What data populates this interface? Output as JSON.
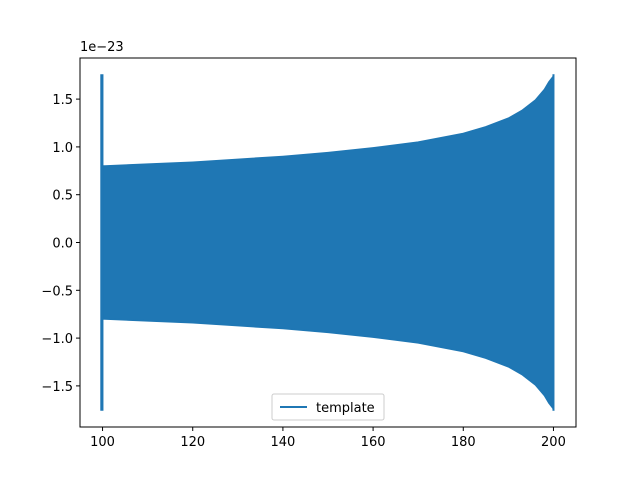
{
  "chart_data": {
    "type": "line",
    "title": "",
    "xlabel": "",
    "ylabel": "",
    "y_offset_text": "1e−23",
    "xlim": [
      95,
      205
    ],
    "ylim": [
      -1.93,
      1.93
    ],
    "x_ticks": [
      100,
      120,
      140,
      160,
      180,
      200
    ],
    "x_tick_labels": [
      "100",
      "120",
      "140",
      "160",
      "180",
      "200"
    ],
    "y_ticks": [
      -1.5,
      -1.0,
      -0.5,
      0.0,
      0.5,
      1.0,
      1.5
    ],
    "y_tick_labels": [
      "−1.5",
      "−1.0",
      "−0.5",
      "0.0",
      "0.5",
      "1.0",
      "1.5"
    ],
    "grid": false,
    "legend_position": "bottom-center",
    "color": "#1f77b4",
    "series": [
      {
        "name": "template",
        "color": "#1f77b4",
        "envelope_x": [
          100,
          100.5,
          110,
          120,
          130,
          140,
          150,
          160,
          170,
          180,
          185,
          190,
          193,
          196,
          198,
          199,
          200
        ],
        "envelope_upper": [
          0.8,
          0.8,
          0.82,
          0.84,
          0.87,
          0.9,
          0.94,
          0.99,
          1.05,
          1.14,
          1.21,
          1.3,
          1.38,
          1.49,
          1.6,
          1.68,
          1.74
        ],
        "spike_x": [
          99.5,
          100.2
        ],
        "spike_amplitude": 1.76
      }
    ]
  }
}
